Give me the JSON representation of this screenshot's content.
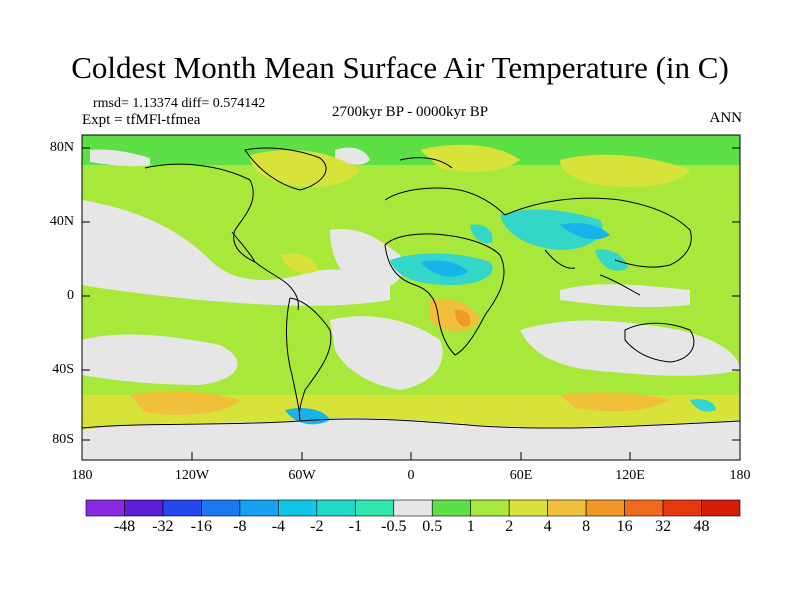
{
  "title": "Coldest Month Mean Surface Air Temperature (in C)",
  "stats": {
    "rmsd_line": "rmsd= 1.13374 diff= 0.574142",
    "expt_line": "Expt = tfMFl-tfmea"
  },
  "period": "2700kyr BP - 0000kyr BP",
  "season": "ANN",
  "axes": {
    "y_ticks": [
      "80N",
      "40N",
      "0",
      "40S",
      "80S"
    ],
    "x_ticks": [
      "180",
      "120W",
      "60W",
      "0",
      "60E",
      "120E",
      "180"
    ]
  },
  "colorbar": {
    "labels": [
      "-48",
      "-32",
      "-16",
      "-8",
      "-4",
      "-2",
      "-1",
      "-0.5",
      "0.5",
      "1",
      "2",
      "4",
      "8",
      "16",
      "32",
      "48"
    ],
    "colors": [
      "#8a2be2",
      "#5a1fd6",
      "#2646ee",
      "#1a78f0",
      "#16a0f0",
      "#13c6e8",
      "#1fd9c9",
      "#33e6b0",
      "#e6e6e6",
      "#5de045",
      "#a8e83a",
      "#d8e33a",
      "#f0c03a",
      "#f09828",
      "#f06a1a",
      "#e63a0e",
      "#d41e08"
    ]
  },
  "legend_colors": {
    "land_outline": "#000000",
    "neutral": "#e6e6e6",
    "green": "#5de045",
    "yellowgreen": "#a8e83a",
    "yellow": "#d8e33a",
    "orange": "#f0c03a",
    "cyan": "#33d6c8",
    "blue": "#16b4e8"
  }
}
